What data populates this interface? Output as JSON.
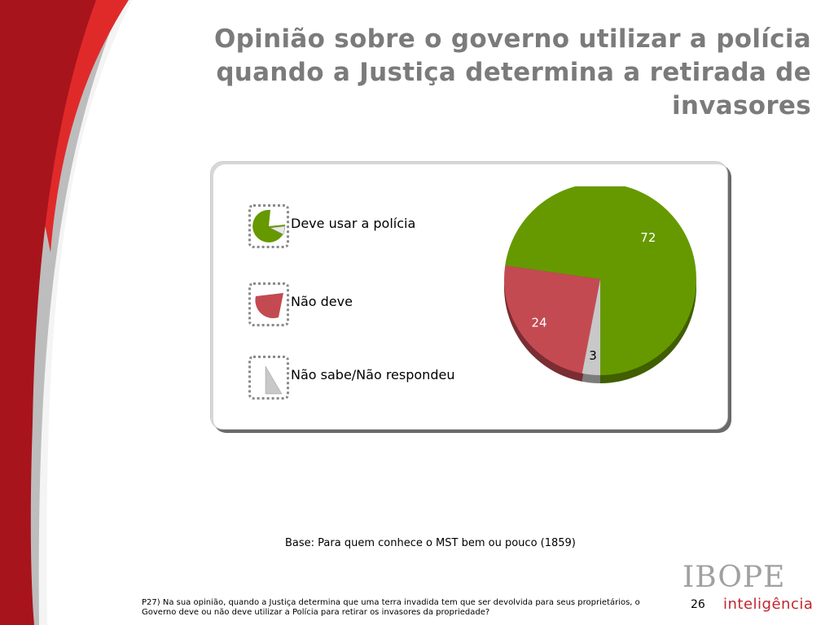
{
  "title": "Opinião sobre o governo utilizar a polícia quando a Justiça determina a retirada de invasores",
  "chart_data": {
    "type": "pie",
    "categories": [
      "Deve usar a polícia",
      "Não deve",
      "Não sabe/Não respondeu"
    ],
    "values": [
      72,
      24,
      3
    ],
    "colors": [
      "#669900",
      "#c44a52",
      "#c8c8c8"
    ],
    "title": "Opinião sobre o governo utilizar a polícia quando a Justiça determina a retirada de invasores",
    "legend_position": "left"
  },
  "base_text": "Base: Para quem conhece o MST bem ou pouco (1859)",
  "footnote": "P27) Na sua opinião, quando a Justiça determina que uma terra invadida tem que ser devolvida para seus proprietários, o Governo deve ou não deve utilizar a Polícia para retirar os invasores da propriedade?",
  "page_number": "26",
  "brand": {
    "name": "IBOPE",
    "sub": "inteligência"
  },
  "colors": {
    "brand_red": "#c0262d",
    "decor_dark_red": "#a8141c",
    "decor_gray": "#bdbdbd"
  }
}
